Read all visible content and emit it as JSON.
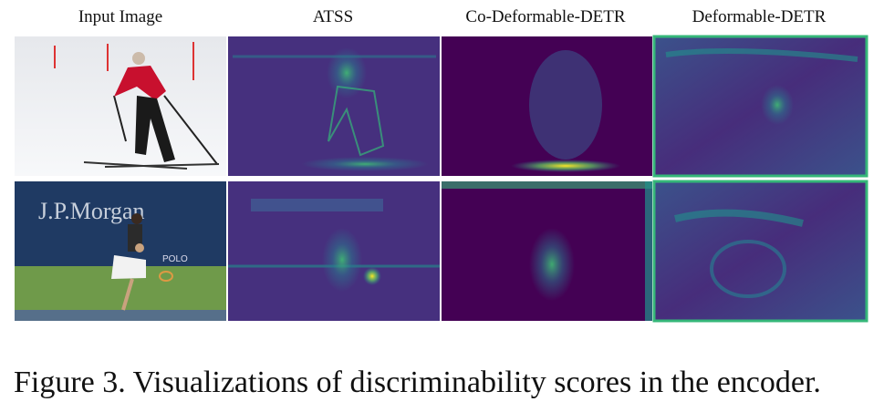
{
  "figure": {
    "column_headers": [
      "Input Image",
      "ATSS",
      "Co-Deformable-DETR",
      "Deformable-DETR"
    ],
    "photo_texts": [
      "J.P.Morgan",
      "POLO"
    ],
    "caption": "Figure 3. Visualizations of discriminability scores in the encoder."
  }
}
